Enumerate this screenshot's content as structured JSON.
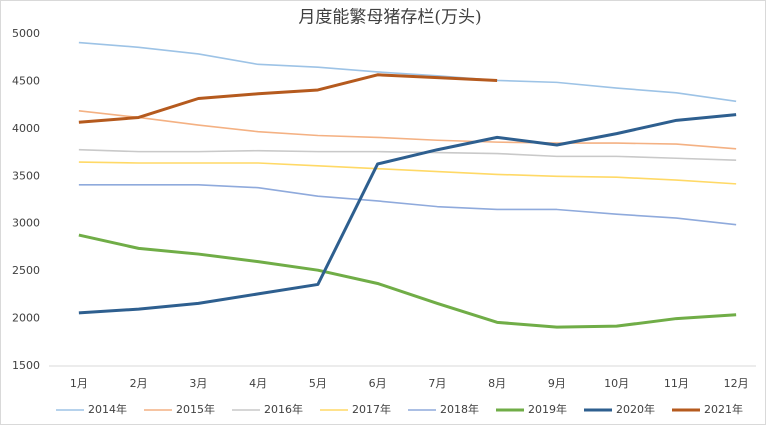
{
  "chart_data": {
    "type": "line",
    "title": "月度能繁母猪存栏(万头)",
    "categories": [
      "1月",
      "2月",
      "3月",
      "4月",
      "5月",
      "6月",
      "7月",
      "8月",
      "9月",
      "10月",
      "11月",
      "12月"
    ],
    "ylim": [
      1500,
      5000
    ],
    "yticks": [
      1500,
      2000,
      2500,
      3000,
      3500,
      4000,
      4500,
      5000
    ],
    "grid": false,
    "legend": "bottom",
    "series": [
      {
        "name": "2014年",
        "color": "#9dc3e6",
        "values": [
          4910,
          4860,
          4790,
          4680,
          4650,
          4600,
          4560,
          4510,
          4490,
          4430,
          4380,
          4290
        ]
      },
      {
        "name": "2015年",
        "color": "#f4b183",
        "values": [
          4190,
          4120,
          4040,
          3970,
          3930,
          3910,
          3880,
          3860,
          3850,
          3850,
          3840,
          3790
        ]
      },
      {
        "name": "2016年",
        "color": "#c9c9c9",
        "values": [
          3780,
          3760,
          3760,
          3770,
          3760,
          3760,
          3750,
          3740,
          3710,
          3710,
          3690,
          3670
        ]
      },
      {
        "name": "2017年",
        "color": "#ffd966",
        "values": [
          3650,
          3640,
          3640,
          3640,
          3610,
          3580,
          3550,
          3520,
          3500,
          3490,
          3460,
          3420
        ]
      },
      {
        "name": "2018年",
        "color": "#8faadc",
        "values": [
          3410,
          3410,
          3410,
          3380,
          3290,
          3240,
          3180,
          3150,
          3150,
          3100,
          3060,
          2990
        ]
      },
      {
        "name": "2019年",
        "color": "#70ad47",
        "values": [
          2880,
          2740,
          2680,
          2600,
          2510,
          2370,
          2160,
          1960,
          1910,
          1920,
          2000,
          2040
        ]
      },
      {
        "name": "2020年",
        "color": "#2e5f8f",
        "values": [
          2060,
          2100,
          2160,
          2260,
          2360,
          3630,
          3780,
          3910,
          3830,
          3950,
          4090,
          4150
        ]
      },
      {
        "name": "2021年",
        "color": "#b55a1e",
        "values": [
          4070,
          4120,
          4320,
          4370,
          4410,
          4570,
          4540,
          4510,
          null,
          null,
          null,
          null
        ]
      }
    ]
  }
}
